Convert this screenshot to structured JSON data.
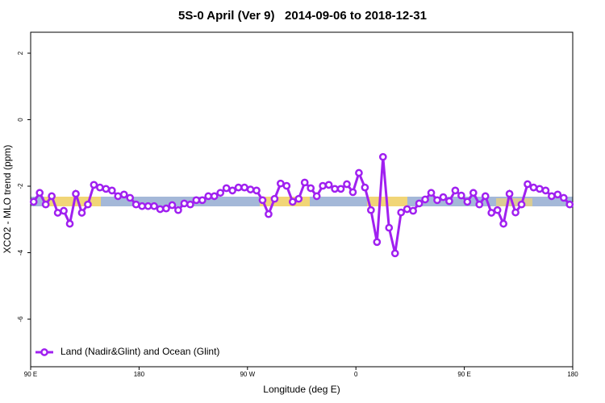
{
  "chart_data": {
    "type": "line",
    "title": "5S-0 April (Ver 9)   2014-09-06 to 2018-12-31",
    "x_label": "Longitude (deg E)",
    "y_label": "XCO2 - MLO trend (ppm)",
    "xlim": [
      90,
      540
    ],
    "xticks": [
      {
        "value": 90,
        "label": "90 E"
      },
      180,
      {
        "value": 270,
        "label": "90 W"
      },
      {
        "value": 360,
        "label": "0"
      },
      {
        "value": 450,
        "label": "90 E"
      },
      {
        "value": 540,
        "label": "180"
      }
    ],
    "ylim": [
      -7.43,
      2.63
    ],
    "yticks": [
      -6,
      -4,
      -2,
      0,
      2
    ],
    "legend": "bottom-left",
    "x": [
      92.5,
      97.5,
      102.5,
      107.5,
      112.5,
      117.5,
      122.5,
      127.5,
      132.5,
      137.5,
      142.5,
      147.5,
      152.5,
      157.5,
      162.5,
      167.5,
      172.5,
      177.5,
      182.5,
      187.5,
      192.5,
      197.5,
      202.5,
      207.5,
      212.5,
      217.5,
      222.5,
      227.5,
      232.5,
      237.5,
      242.5,
      247.5,
      252.5,
      257.5,
      262.5,
      267.5,
      272.5,
      277.5,
      282.5,
      287.5,
      292.5,
      297.5,
      302.5,
      307.5,
      312.5,
      317.5,
      322.5,
      327.5,
      332.5,
      337.5,
      342.5,
      347.5,
      352.5,
      357.5,
      362.5,
      367.5,
      372.5,
      377.5,
      382.5,
      387.5,
      392.5,
      397.5,
      402.5,
      407.5,
      412.5,
      417.5,
      422.5,
      427.5,
      432.5,
      437.5,
      442.5,
      447.5,
      452.5,
      457.5,
      462.5,
      467.5,
      472.5,
      477.5,
      482.5,
      487.5,
      492.5,
      497.5,
      502.5,
      507.5,
      512.5,
      517.5,
      522.5,
      527.5,
      532.5,
      537.5
    ],
    "series": [
      {
        "name": "Land (Nadir&Glint) and Ocean (Glint)",
        "color": "#a020f0",
        "values": [
          -2.47,
          -2.2,
          -2.55,
          -2.3,
          -2.8,
          -2.74,
          -3.13,
          -2.23,
          -2.8,
          -2.55,
          -1.96,
          -2.04,
          -2.08,
          -2.13,
          -2.3,
          -2.25,
          -2.35,
          -2.55,
          -2.6,
          -2.6,
          -2.6,
          -2.69,
          -2.67,
          -2.57,
          -2.72,
          -2.52,
          -2.55,
          -2.42,
          -2.42,
          -2.3,
          -2.3,
          -2.2,
          -2.06,
          -2.13,
          -2.04,
          -2.04,
          -2.1,
          -2.13,
          -2.42,
          -2.84,
          -2.38,
          -1.92,
          -1.99,
          -2.47,
          -2.38,
          -1.89,
          -2.06,
          -2.3,
          -1.99,
          -1.96,
          -2.08,
          -2.08,
          -1.94,
          -2.18,
          -1.6,
          -2.04,
          -2.72,
          -3.68,
          -1.12,
          -3.25,
          -4.02,
          -2.79,
          -2.69,
          -2.74,
          -2.52,
          -2.4,
          -2.2,
          -2.42,
          -2.33,
          -2.45,
          -2.13,
          -2.28,
          -2.47,
          -2.2,
          -2.55,
          -2.3,
          -2.8,
          -2.72,
          -3.13,
          -2.23,
          -2.79,
          -2.55,
          -1.94,
          -2.04,
          -2.08,
          -2.13,
          -2.3,
          -2.25,
          -2.35,
          -2.55
        ]
      }
    ]
  }
}
